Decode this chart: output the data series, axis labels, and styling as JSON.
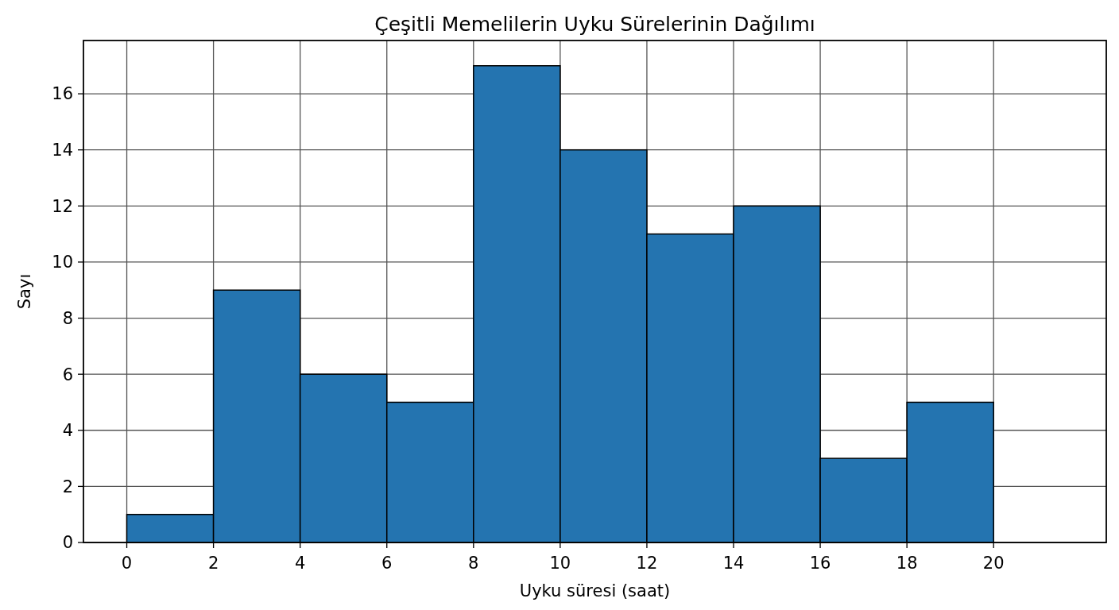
{
  "chart_data": {
    "type": "histogram",
    "title": "Çeşitli Memelilerin Uyku Sürelerinin Dağılımı",
    "xlabel": "Uyku süresi (saat)",
    "ylabel": "Sayı",
    "bins": [
      0,
      2,
      4,
      6,
      8,
      10,
      12,
      14,
      16,
      18,
      20
    ],
    "values": [
      1,
      9,
      6,
      5,
      17,
      14,
      11,
      12,
      3,
      5
    ],
    "color": "#2474b0",
    "xlim": [
      -1,
      22.6
    ],
    "ylim": [
      0,
      17.9
    ],
    "xticks": [
      0,
      2,
      4,
      6,
      8,
      10,
      12,
      14,
      16,
      18,
      20
    ],
    "yticks": [
      0,
      2,
      4,
      6,
      8,
      10,
      12,
      14,
      16
    ],
    "grid": true
  }
}
